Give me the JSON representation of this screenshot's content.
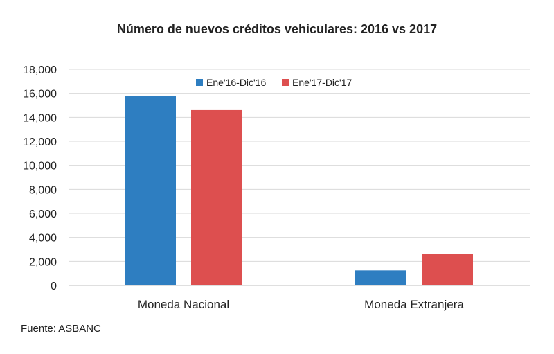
{
  "chart_data": {
    "type": "bar",
    "title": "Número de nuevos créditos vehiculares: 2016 vs 2017",
    "categories": [
      "Moneda Nacional",
      "Moneda Extranjera"
    ],
    "series": [
      {
        "name": "Ene'16-Dic'16",
        "values": [
          15750,
          1250
        ],
        "color": "#2e7ec1"
      },
      {
        "name": "Ene'17-Dic'17",
        "values": [
          14600,
          2650
        ],
        "color": "#dd4f4f"
      }
    ],
    "ylim": [
      0,
      18000
    ],
    "yticks": [
      0,
      2000,
      4000,
      6000,
      8000,
      10000,
      12000,
      14000,
      16000,
      18000
    ],
    "ytick_labels": [
      "0",
      "2,000",
      "4,000",
      "6,000",
      "8,000",
      "10,000",
      "12,000",
      "14,000",
      "16,000",
      "18,000"
    ],
    "grid": true,
    "legend_position": "top"
  },
  "source": "Fuente: ASBANC"
}
